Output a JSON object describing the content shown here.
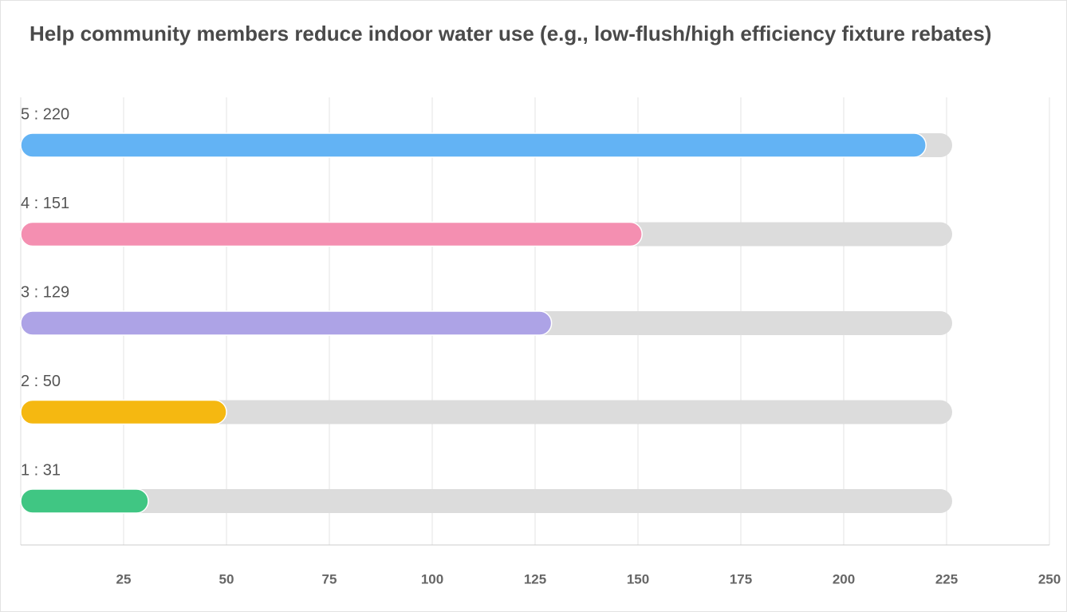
{
  "chart_data": {
    "type": "bar",
    "orientation": "horizontal",
    "title": "Help community members reduce indoor water use (e.g., low-flush/high efficiency fixture rebates)",
    "values": [
      220,
      151,
      129,
      50,
      31
    ],
    "value_labels": [
      "5 : 220",
      "4 : 151",
      "3 : 129",
      "2 : 50",
      "1 : 31"
    ],
    "colors": [
      "#63b3f4",
      "#f48fb1",
      "#ada3e6",
      "#f5b811",
      "#40c683"
    ],
    "xlim": [
      0,
      250
    ],
    "xticks": [
      25,
      50,
      75,
      100,
      125,
      150,
      175,
      200,
      225,
      250
    ],
    "grid": true
  }
}
